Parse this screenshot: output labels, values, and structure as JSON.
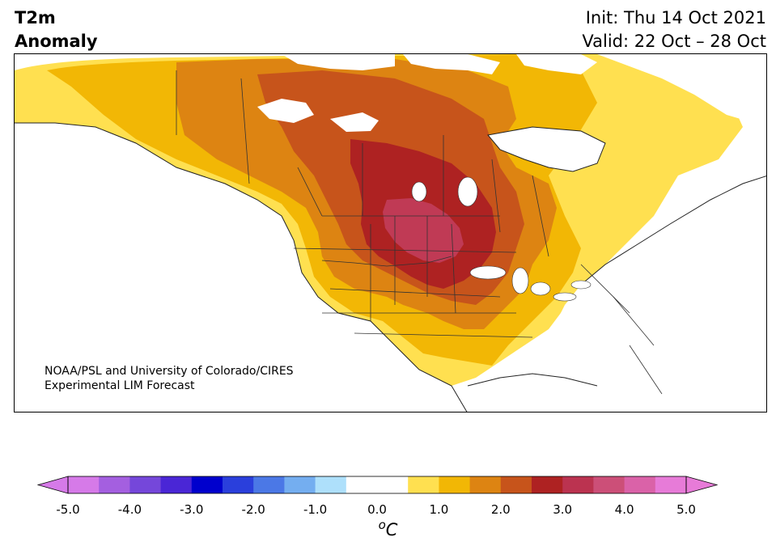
{
  "header": {
    "title_line1": "T2m",
    "title_line2": "Anomaly",
    "init": "Init: Thu 14 Oct 2021",
    "valid": "Valid: 22 Oct – 28 Oct"
  },
  "credit": {
    "line1": "NOAA/PSL and University of Colorado/CIRES",
    "line2": "Experimental LIM Forecast"
  },
  "colorbar": {
    "unit_label": "°C",
    "unit_super": "o",
    "unit_main": "C",
    "ticks": [
      "-5.0",
      "-4.0",
      "-3.0",
      "-2.0",
      "-1.0",
      "0.0",
      "1.0",
      "2.0",
      "3.0",
      "4.0",
      "5.0"
    ],
    "tick_values": [
      -5,
      -4,
      -3,
      -2,
      -1,
      0,
      1,
      2,
      3,
      4,
      5
    ],
    "range": [
      -5,
      5
    ],
    "step": 0.5,
    "extend": "both",
    "colors": [
      "#d67ae8",
      "#a45fe0",
      "#7547da",
      "#4a26d6",
      "#0000cd",
      "#2a3fdc",
      "#4b78e6",
      "#74aef0",
      "#aee0fb",
      "#ffffff",
      "#ffffff",
      "#ffe050",
      "#f2b705",
      "#dd8412",
      "#c7541b",
      "#ae2222",
      "#bb3350",
      "#cc4f78",
      "#da62a8",
      "#e77bd8"
    ],
    "low_extend_color": "#d67ae8",
    "high_extend_color": "#e77bd8"
  },
  "map": {
    "region": "North America",
    "field": "2m temperature anomaly",
    "palette": {
      "ocean": "#ffffff",
      "yellow": "#ffe050",
      "gold": "#f2b705",
      "orange": "#dd8412",
      "burnt": "#c7541b",
      "red": "#ae2222",
      "crimson": "#c03a55",
      "border": "#333333"
    }
  }
}
